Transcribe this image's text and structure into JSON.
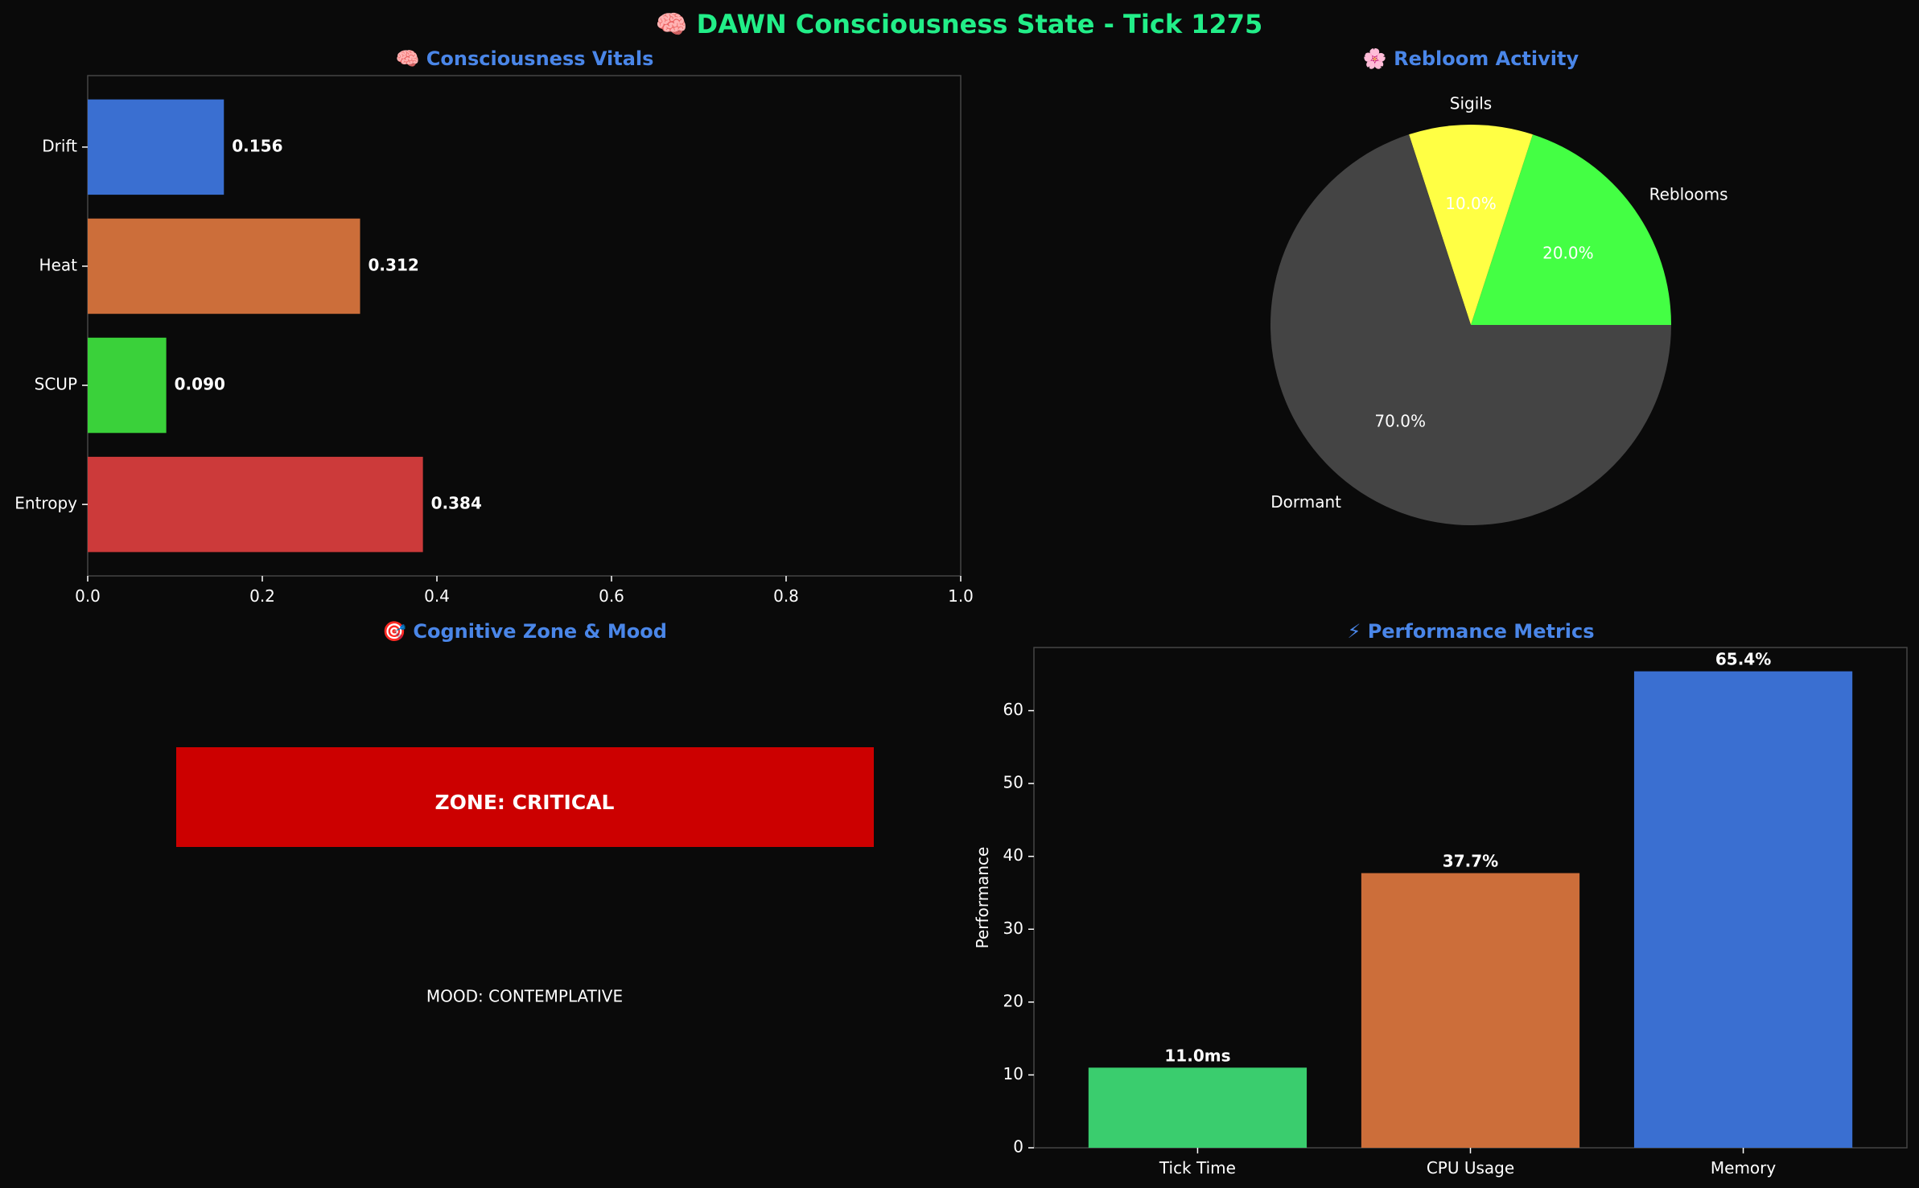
{
  "page": {
    "title": "🧠 DAWN Consciousness State - Tick 1275",
    "title_color": "#22ee88",
    "panel_title_color": "#4a86e8",
    "background": "#0a0a0a"
  },
  "chart_data": [
    {
      "type": "bar",
      "orientation": "horizontal",
      "title": "🧠 Consciousness Vitals",
      "categories": [
        "Drift",
        "Heat",
        "SCUP",
        "Entropy"
      ],
      "values": [
        0.156,
        0.312,
        0.09,
        0.384
      ],
      "value_labels": [
        "0.156",
        "0.312",
        "0.090",
        "0.384"
      ],
      "colors": [
        "#3a6fd1",
        "#cc6e3a",
        "#3ad13a",
        "#cc3a3a"
      ],
      "xlim": [
        0,
        1
      ],
      "xticks": [
        "0.0",
        "0.2",
        "0.4",
        "0.6",
        "0.8",
        "1.0"
      ]
    },
    {
      "type": "pie",
      "title": "🌸 Rebloom Activity",
      "labels": [
        "Reblooms",
        "Sigils",
        "Dormant"
      ],
      "values": [
        20,
        10,
        70
      ],
      "pct_labels": [
        "20.0%",
        "10.0%",
        "70.0%"
      ],
      "colors": [
        "#44ff44",
        "#ffff44",
        "#444444"
      ]
    },
    {
      "type": "table",
      "title": "🎯 Cognitive Zone & Mood",
      "zone_text": "ZONE: CRITICAL",
      "zone_color": "#cc0000",
      "mood_text": "MOOD: CONTEMPLATIVE"
    },
    {
      "type": "bar",
      "title": "⚡ Performance Metrics",
      "categories": [
        "Tick Time",
        "CPU Usage",
        "Memory"
      ],
      "values": [
        11.0,
        37.7,
        65.4
      ],
      "value_labels": [
        "11.0ms",
        "37.7%",
        "65.4%"
      ],
      "colors": [
        "#3acd6e",
        "#cc6e3a",
        "#3a6fd1"
      ],
      "ylabel": "Performance",
      "ylim": [
        0,
        68.67
      ],
      "yticks": [
        0,
        10,
        20,
        30,
        40,
        50,
        60
      ]
    }
  ]
}
